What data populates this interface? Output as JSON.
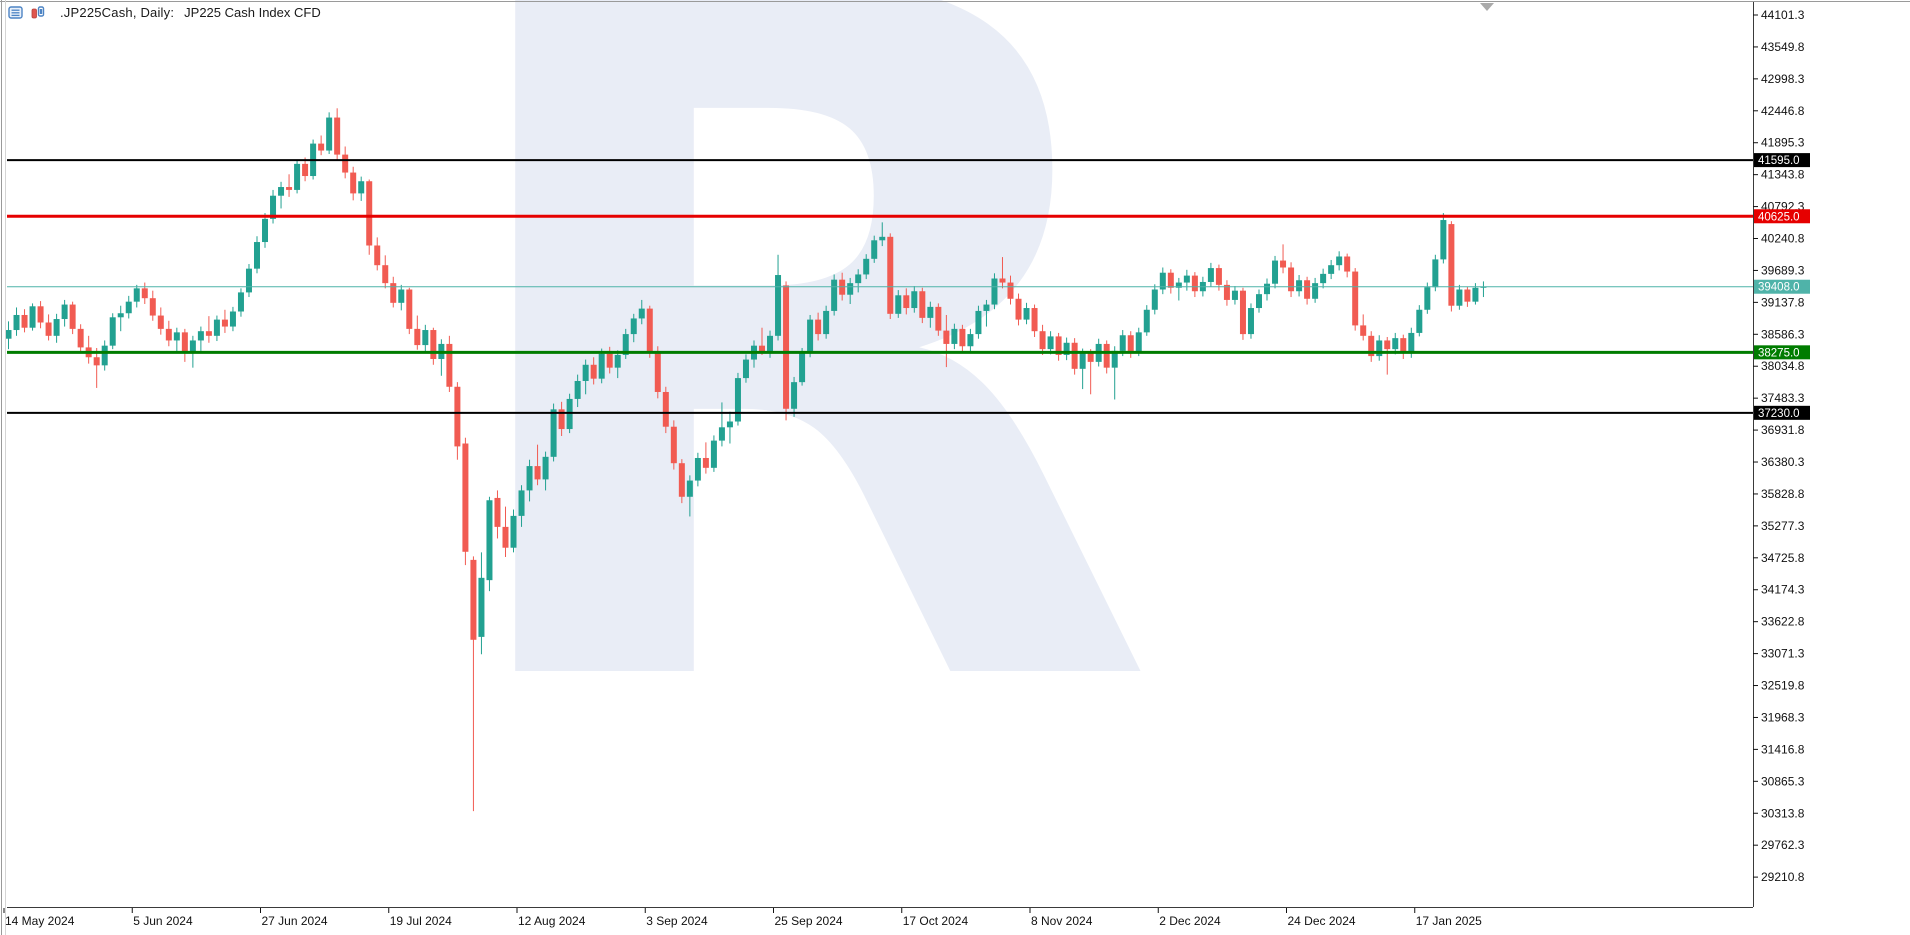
{
  "header": {
    "symbol_title": ".JP225Cash, Daily:",
    "description": "JP225 Cash Index CFD",
    "icons": [
      "market-watch-icon",
      "chart-bars-icon"
    ]
  },
  "watermark": {
    "letter": "R",
    "color": "#E9EDF6"
  },
  "colors": {
    "bull": "#22A191",
    "bear": "#F15B52",
    "axis_text": "#111111",
    "border": "#3a3a3a",
    "window_edge": "#9a9a9a",
    "shift_marker": "#aaaaaa"
  },
  "chart_data": {
    "type": "candlestick",
    "title": ".JP225Cash, Daily: JP225 Cash Index CFD",
    "symbol": ".JP225Cash",
    "timeframe": "Daily",
    "legend_position": "none",
    "grid": false,
    "x_axis": {
      "labels": [
        "14 May 2024",
        "5 Jun 2024",
        "27 Jun 2024",
        "19 Jul 2024",
        "12 Aug 2024",
        "3 Sep 2024",
        "25 Sep 2024",
        "17 Oct 2024",
        "8 Nov 2024",
        "2 Dec 2024",
        "24 Dec 2024",
        "17 Jan 2025"
      ]
    },
    "y_axis": {
      "top_value": 44101.3,
      "step": 551.5,
      "range": [
        29210.8,
        44101.3
      ],
      "labels": [
        "44101.3",
        "43549.8",
        "42998.3",
        "42446.8",
        "41895.3",
        "41343.8",
        "40792.3",
        "40240.8",
        "39689.3",
        "39137.8",
        "38586.3",
        "38034.8",
        "37483.3",
        "36931.8",
        "36380.3",
        "35828.8",
        "35277.3",
        "34725.8",
        "34174.3",
        "33622.8",
        "33071.3",
        "32519.8",
        "31968.3",
        "31416.8",
        "30865.3",
        "30313.8",
        "29762.3",
        "29210.8"
      ]
    },
    "levels": [
      {
        "name": "resistance-upper",
        "price": 41595.0,
        "label": "41595.0",
        "color": "#000000",
        "thickness": 2
      },
      {
        "name": "resistance",
        "price": 40625.0,
        "label": "40625.0",
        "color": "#E60000",
        "thickness": 3
      },
      {
        "name": "current-price",
        "price": 39408.0,
        "label": "39408.0",
        "color": "#4FB3A9",
        "thickness": 1
      },
      {
        "name": "support",
        "price": 38275.0,
        "label": "38275.0",
        "color": "#007C00",
        "thickness": 3
      },
      {
        "name": "support-lower",
        "price": 37230.0,
        "label": "37230.0",
        "color": "#000000",
        "thickness": 2
      }
    ],
    "candles": [
      [
        38510,
        38810,
        38330,
        38660
      ],
      [
        38660,
        39050,
        38560,
        38920
      ],
      [
        38920,
        39020,
        38620,
        38700
      ],
      [
        38700,
        39120,
        38650,
        39070
      ],
      [
        39070,
        39160,
        38690,
        38790
      ],
      [
        38790,
        38930,
        38480,
        38560
      ],
      [
        38560,
        38940,
        38440,
        38850
      ],
      [
        38850,
        39180,
        38720,
        39100
      ],
      [
        39100,
        39150,
        38590,
        38680
      ],
      [
        38680,
        38760,
        38280,
        38360
      ],
      [
        38360,
        38560,
        38080,
        38190
      ],
      [
        38190,
        38350,
        37660,
        38050
      ],
      [
        38050,
        38480,
        37960,
        38390
      ],
      [
        38390,
        38950,
        38330,
        38880
      ],
      [
        38880,
        39080,
        38640,
        38950
      ],
      [
        38950,
        39250,
        38860,
        39150
      ],
      [
        39150,
        39440,
        39050,
        39380
      ],
      [
        39380,
        39480,
        39110,
        39210
      ],
      [
        39210,
        39340,
        38820,
        38910
      ],
      [
        38910,
        39050,
        38580,
        38680
      ],
      [
        38680,
        38820,
        38380,
        38480
      ],
      [
        38480,
        38700,
        38280,
        38620
      ],
      [
        38620,
        38680,
        38110,
        38260
      ],
      [
        38260,
        38560,
        38010,
        38480
      ],
      [
        38480,
        38720,
        38300,
        38640
      ],
      [
        38640,
        38900,
        38440,
        38560
      ],
      [
        38560,
        38910,
        38470,
        38840
      ],
      [
        38840,
        39010,
        38610,
        38720
      ],
      [
        38720,
        39060,
        38640,
        38980
      ],
      [
        38980,
        39380,
        38890,
        39310
      ],
      [
        39310,
        39800,
        39230,
        39720
      ],
      [
        39720,
        40280,
        39640,
        40180
      ],
      [
        40180,
        40680,
        40080,
        40580
      ],
      [
        40580,
        41080,
        40500,
        40980
      ],
      [
        40980,
        41220,
        40760,
        41130
      ],
      [
        41130,
        41350,
        40960,
        41080
      ],
      [
        41080,
        41600,
        41020,
        41530
      ],
      [
        41530,
        41640,
        41230,
        41320
      ],
      [
        41320,
        41950,
        41260,
        41880
      ],
      [
        41880,
        42020,
        41680,
        41760
      ],
      [
        41760,
        42420,
        41700,
        42330
      ],
      [
        42330,
        42490,
        41600,
        41690
      ],
      [
        41690,
        41830,
        41280,
        41380
      ],
      [
        41380,
        41480,
        40900,
        41020
      ],
      [
        41020,
        41310,
        40890,
        41230
      ],
      [
        41230,
        41260,
        39960,
        40120
      ],
      [
        40120,
        40260,
        39690,
        39780
      ],
      [
        39780,
        39950,
        39380,
        39470
      ],
      [
        39470,
        39580,
        39050,
        39130
      ],
      [
        39130,
        39440,
        39000,
        39360
      ],
      [
        39360,
        39390,
        38590,
        38680
      ],
      [
        38680,
        38910,
        38320,
        38400
      ],
      [
        38400,
        38750,
        38280,
        38660
      ],
      [
        38660,
        38700,
        38060,
        38160
      ],
      [
        38160,
        38500,
        37870,
        38420
      ],
      [
        38420,
        38560,
        37590,
        37680
      ],
      [
        37680,
        37760,
        36420,
        36650
      ],
      [
        36700,
        36800,
        34600,
        34830
      ],
      [
        34690,
        34750,
        30350,
        33310
      ],
      [
        33360,
        34820,
        33060,
        34380
      ],
      [
        34340,
        35780,
        34150,
        35720
      ],
      [
        35760,
        35890,
        35060,
        35260
      ],
      [
        35260,
        35610,
        34740,
        34900
      ],
      [
        34900,
        35560,
        34820,
        35450
      ],
      [
        35450,
        35980,
        35260,
        35890
      ],
      [
        35890,
        36420,
        35700,
        36310
      ],
      [
        36310,
        36680,
        35980,
        36080
      ],
      [
        36080,
        36560,
        35890,
        36470
      ],
      [
        36470,
        37390,
        36390,
        37290
      ],
      [
        37290,
        37420,
        36830,
        36950
      ],
      [
        36950,
        37560,
        36880,
        37470
      ],
      [
        37470,
        37890,
        37330,
        37780
      ],
      [
        37780,
        38150,
        37550,
        38060
      ],
      [
        38060,
        38190,
        37720,
        37820
      ],
      [
        37820,
        38340,
        37740,
        38250
      ],
      [
        38250,
        38370,
        37910,
        38010
      ],
      [
        38010,
        38310,
        37830,
        38230
      ],
      [
        38230,
        38680,
        38160,
        38590
      ],
      [
        38590,
        38940,
        38450,
        38860
      ],
      [
        38860,
        39180,
        38760,
        39030
      ],
      [
        39030,
        39080,
        38180,
        38280
      ],
      [
        38280,
        38380,
        37480,
        37590
      ],
      [
        37590,
        37680,
        36880,
        36990
      ],
      [
        36990,
        37100,
        36250,
        36360
      ],
      [
        36360,
        36430,
        35670,
        35780
      ],
      [
        35780,
        36150,
        35440,
        36060
      ],
      [
        36060,
        36540,
        35960,
        36450
      ],
      [
        36450,
        36720,
        36180,
        36280
      ],
      [
        36280,
        36840,
        36210,
        36750
      ],
      [
        36750,
        37410,
        36650,
        36980
      ],
      [
        36980,
        37250,
        36700,
        37080
      ],
      [
        37080,
        37920,
        37010,
        37830
      ],
      [
        37830,
        38240,
        37750,
        38150
      ],
      [
        38150,
        38480,
        38010,
        38390
      ],
      [
        38390,
        38700,
        38230,
        38280
      ],
      [
        38280,
        38650,
        38180,
        38560
      ],
      [
        38560,
        39960,
        38480,
        39610
      ],
      [
        39430,
        39500,
        37100,
        37300
      ],
      [
        37300,
        37850,
        37160,
        37760
      ],
      [
        37760,
        38350,
        37700,
        38270
      ],
      [
        38270,
        38920,
        38190,
        38840
      ],
      [
        38840,
        38960,
        38480,
        38590
      ],
      [
        38590,
        39080,
        38510,
        38990
      ],
      [
        38990,
        39620,
        38910,
        39530
      ],
      [
        39530,
        39650,
        39170,
        39270
      ],
      [
        39270,
        39560,
        39110,
        39470
      ],
      [
        39470,
        39710,
        39310,
        39620
      ],
      [
        39620,
        39970,
        39540,
        39890
      ],
      [
        39890,
        40290,
        39820,
        40210
      ],
      [
        40210,
        40520,
        40110,
        40270
      ],
      [
        40270,
        40330,
        38850,
        38940
      ],
      [
        38940,
        39350,
        38870,
        39260
      ],
      [
        39260,
        39380,
        38930,
        39040
      ],
      [
        39040,
        39420,
        38960,
        39330
      ],
      [
        39330,
        39390,
        38780,
        38870
      ],
      [
        38870,
        39150,
        38700,
        39060
      ],
      [
        39060,
        39120,
        38560,
        38650
      ],
      [
        38650,
        38920,
        38020,
        38420
      ],
      [
        38420,
        38770,
        38330,
        38680
      ],
      [
        38680,
        38750,
        38290,
        38380
      ],
      [
        38380,
        38680,
        38280,
        38590
      ],
      [
        38590,
        39080,
        38510,
        38990
      ],
      [
        38990,
        39180,
        38720,
        39100
      ],
      [
        39100,
        39640,
        39020,
        39550
      ],
      [
        39550,
        39920,
        39380,
        39480
      ],
      [
        39480,
        39600,
        39100,
        39200
      ],
      [
        39200,
        39290,
        38740,
        38840
      ],
      [
        38840,
        39130,
        38760,
        39040
      ],
      [
        39040,
        39100,
        38540,
        38640
      ],
      [
        38640,
        38750,
        38230,
        38330
      ],
      [
        38330,
        38640,
        38240,
        38550
      ],
      [
        38550,
        38610,
        38130,
        38230
      ],
      [
        38230,
        38530,
        38140,
        38440
      ],
      [
        38440,
        38520,
        37890,
        37990
      ],
      [
        37990,
        38340,
        37640,
        38260
      ],
      [
        38260,
        38330,
        37550,
        38110
      ],
      [
        38110,
        38510,
        38030,
        38420
      ],
      [
        38420,
        38480,
        37910,
        38010
      ],
      [
        38010,
        38380,
        37460,
        38300
      ],
      [
        38300,
        38660,
        38210,
        38570
      ],
      [
        38570,
        38640,
        38180,
        38280
      ],
      [
        38280,
        38700,
        38210,
        38620
      ],
      [
        38620,
        39090,
        38560,
        39010
      ],
      [
        39010,
        39450,
        38930,
        39360
      ],
      [
        39360,
        39740,
        39280,
        39650
      ],
      [
        39650,
        39710,
        39290,
        39390
      ],
      [
        39390,
        39560,
        39170,
        39480
      ],
      [
        39480,
        39700,
        39340,
        39600
      ],
      [
        39600,
        39660,
        39230,
        39330
      ],
      [
        39330,
        39580,
        39240,
        39490
      ],
      [
        39490,
        39820,
        39410,
        39730
      ],
      [
        39730,
        39790,
        39340,
        39440
      ],
      [
        39440,
        39520,
        39080,
        39180
      ],
      [
        39180,
        39420,
        39100,
        39340
      ],
      [
        39340,
        39390,
        38490,
        38590
      ],
      [
        38590,
        39120,
        38510,
        39040
      ],
      [
        39040,
        39360,
        38960,
        39280
      ],
      [
        39280,
        39550,
        39170,
        39460
      ],
      [
        39460,
        39940,
        39380,
        39860
      ],
      [
        39860,
        40140,
        39640,
        39740
      ],
      [
        39740,
        39830,
        39230,
        39330
      ],
      [
        39330,
        39610,
        39240,
        39520
      ],
      [
        39520,
        39580,
        39100,
        39200
      ],
      [
        39200,
        39560,
        39130,
        39470
      ],
      [
        39470,
        39720,
        39380,
        39630
      ],
      [
        39630,
        39870,
        39540,
        39780
      ],
      [
        39780,
        40020,
        39690,
        39930
      ],
      [
        39930,
        39980,
        39570,
        39670
      ],
      [
        39670,
        39730,
        38650,
        38740
      ],
      [
        38740,
        38930,
        38480,
        38560
      ],
      [
        38560,
        38640,
        38110,
        38210
      ],
      [
        38210,
        38570,
        38130,
        38480
      ],
      [
        38480,
        38540,
        37890,
        38330
      ],
      [
        38330,
        38610,
        38240,
        38520
      ],
      [
        38520,
        38580,
        38160,
        38260
      ],
      [
        38260,
        38700,
        38180,
        38610
      ],
      [
        38610,
        39090,
        38550,
        39010
      ],
      [
        39010,
        39480,
        38940,
        39400
      ],
      [
        39400,
        39960,
        39330,
        39880
      ],
      [
        39880,
        40680,
        39810,
        40560
      ],
      [
        40490,
        40540,
        38980,
        39080
      ],
      [
        39080,
        39440,
        39010,
        39360
      ],
      [
        39360,
        39410,
        39060,
        39150
      ],
      [
        39150,
        39470,
        39100,
        39390
      ],
      [
        39390,
        39500,
        39230,
        39408
      ]
    ]
  }
}
